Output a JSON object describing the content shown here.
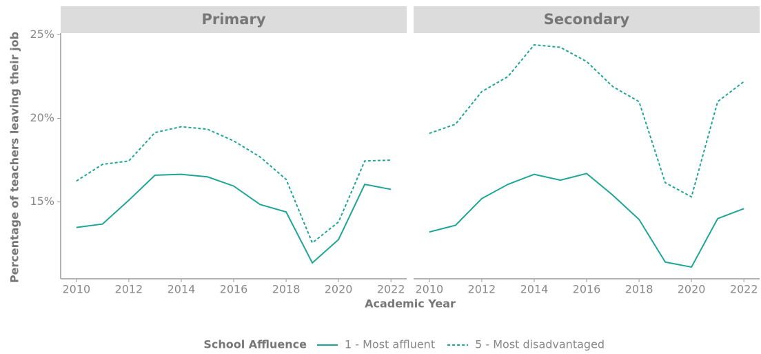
{
  "y_label": "Percentage of teachers leaving their job",
  "x_label": "Academic Year",
  "legend_title": "School Affluence",
  "chart_data": [
    {
      "type": "line",
      "title": "Primary",
      "x": [
        2010,
        2011,
        2012,
        2013,
        2014,
        2015,
        2016,
        2017,
        2018,
        2019,
        2020,
        2021,
        2022
      ],
      "series": [
        {
          "name": "1 - Most affluent",
          "color": "#1fa595",
          "dashed": false,
          "values": [
            13.47,
            13.68,
            15.1,
            16.6,
            16.65,
            16.5,
            15.95,
            14.85,
            14.4,
            11.35,
            12.75,
            16.05,
            15.75
          ]
        },
        {
          "name": "5 - Most disadvantaged",
          "color": "#1fa595",
          "dashed": true,
          "values": [
            16.25,
            17.25,
            17.45,
            19.15,
            19.5,
            19.35,
            18.65,
            17.7,
            16.35,
            12.55,
            13.8,
            17.45,
            17.5
          ]
        }
      ],
      "xlim": [
        2009.4,
        2022.6
      ],
      "xticks": [
        2010,
        2012,
        2014,
        2016,
        2018,
        2020,
        2022
      ],
      "ylim": [
        10.4,
        25.1
      ],
      "yticks": [
        {
          "value": 15,
          "label": "15%"
        },
        {
          "value": 20,
          "label": "20%"
        },
        {
          "value": 25,
          "label": "25%"
        }
      ]
    },
    {
      "type": "line",
      "title": "Secondary",
      "x": [
        2010,
        2011,
        2012,
        2013,
        2014,
        2015,
        2016,
        2017,
        2018,
        2019,
        2020,
        2021,
        2022
      ],
      "series": [
        {
          "name": "1 - Most affluent",
          "color": "#1fa595",
          "dashed": false,
          "values": [
            13.2,
            13.6,
            15.2,
            16.05,
            16.65,
            16.3,
            16.7,
            15.4,
            13.95,
            11.4,
            11.1,
            14.0,
            14.6
          ]
        },
        {
          "name": "5 - Most disadvantaged",
          "color": "#1fa595",
          "dashed": true,
          "values": [
            19.1,
            19.65,
            21.6,
            22.5,
            24.4,
            24.25,
            23.4,
            21.9,
            21.0,
            16.15,
            15.3,
            21.0,
            22.2
          ]
        }
      ],
      "xlim": [
        2009.4,
        2022.6
      ],
      "xticks": [
        2010,
        2012,
        2014,
        2016,
        2018,
        2020,
        2022
      ],
      "ylim": [
        10.4,
        25.1
      ]
    }
  ]
}
